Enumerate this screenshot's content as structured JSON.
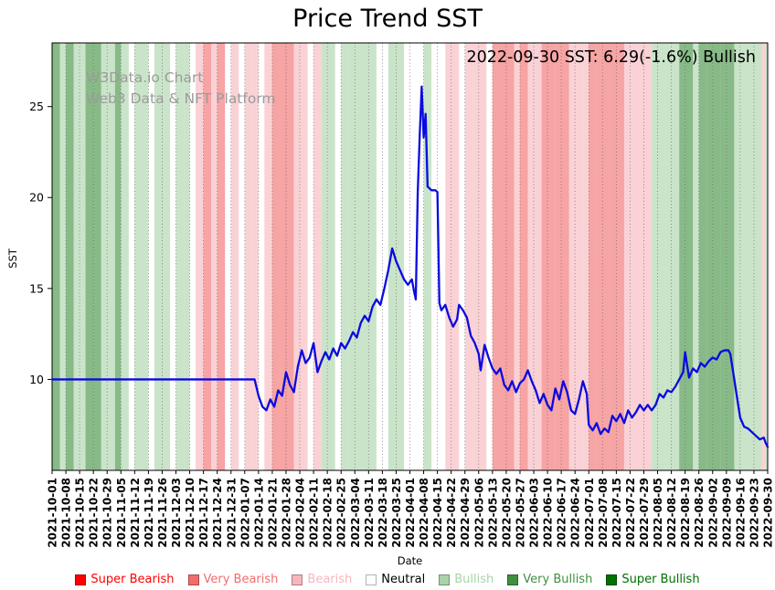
{
  "title": "Price Trend SST",
  "watermark": {
    "line1": "W3Data.io Chart",
    "line2": "Web3 Data & NFT Platform"
  },
  "annotation": "2022-09-30 SST: 6.29(-1.6%) Bullish",
  "axes": {
    "x_label": "Date",
    "y_label": "SST"
  },
  "palette": {
    "super_bearish": "#ff0000",
    "very_bearish": "#f26c6c",
    "bearish": "#f7b6bd",
    "neutral": "#ffffff",
    "bullish": "#a9d3a9",
    "very_bullish": "#3f8f3f",
    "super_bullish": "#007000"
  },
  "legend": [
    {
      "label": "Super Bearish",
      "key": "super_bearish",
      "color": "#ff0000"
    },
    {
      "label": "Very Bearish",
      "key": "very_bearish",
      "color": "#f26c6c"
    },
    {
      "label": "Bearish",
      "key": "bearish",
      "color": "#f7b6bd"
    },
    {
      "label": "Neutral",
      "key": "neutral",
      "color": "#ffffff",
      "text_color": "#000000"
    },
    {
      "label": "Bullish",
      "key": "bullish",
      "color": "#a9d3a9"
    },
    {
      "label": "Very Bullish",
      "key": "very_bullish",
      "color": "#3f8f3f"
    },
    {
      "label": "Super Bullish",
      "key": "super_bullish",
      "color": "#007000"
    }
  ],
  "chart_data": {
    "type": "line",
    "title": "Price Trend SST",
    "xlabel": "Date",
    "ylabel": "SST",
    "ylim": [
      5.0,
      28.5
    ],
    "yticks": [
      10,
      15,
      20,
      25
    ],
    "grid": "vertical-dotted",
    "legend_position": "bottom",
    "x_tick_labels": [
      "2021-10-01",
      "2021-10-08",
      "2021-10-15",
      "2021-10-22",
      "2021-10-29",
      "2021-11-05",
      "2021-11-12",
      "2021-11-19",
      "2021-11-26",
      "2021-12-03",
      "2021-12-10",
      "2021-12-17",
      "2021-12-24",
      "2021-12-31",
      "2022-01-07",
      "2022-01-14",
      "2022-01-21",
      "2022-01-28",
      "2022-02-04",
      "2022-02-11",
      "2022-02-18",
      "2022-02-25",
      "2022-03-04",
      "2022-03-11",
      "2022-03-18",
      "2022-03-25",
      "2022-04-01",
      "2022-04-08",
      "2022-04-15",
      "2022-04-22",
      "2022-04-29",
      "2022-05-06",
      "2022-05-13",
      "2022-05-20",
      "2022-05-27",
      "2022-06-03",
      "2022-06-10",
      "2022-06-17",
      "2022-06-24",
      "2022-07-01",
      "2022-07-08",
      "2022-07-15",
      "2022-07-22",
      "2022-07-29",
      "2022-08-05",
      "2022-08-12",
      "2022-08-19",
      "2022-08-26",
      "2022-09-02",
      "2022-09-09",
      "2022-09-16",
      "2022-09-23",
      "2022-09-30"
    ],
    "x_days_total": 364,
    "latest": {
      "date": "2022-09-30",
      "sst": 6.29,
      "change_pct": -1.6,
      "signal": "Bullish"
    },
    "series": [
      {
        "name": "SST",
        "color": "#0a0ae0",
        "points": [
          [
            0,
            10
          ],
          [
            14,
            10
          ],
          [
            28,
            10
          ],
          [
            42,
            10
          ],
          [
            56,
            10
          ],
          [
            70,
            10
          ],
          [
            84,
            10
          ],
          [
            98,
            10
          ],
          [
            103,
            10
          ],
          [
            105,
            9.1
          ],
          [
            107,
            8.5
          ],
          [
            109,
            8.3
          ],
          [
            111,
            8.9
          ],
          [
            113,
            8.5
          ],
          [
            115,
            9.4
          ],
          [
            117,
            9.1
          ],
          [
            119,
            10.4
          ],
          [
            121,
            9.7
          ],
          [
            123,
            9.3
          ],
          [
            125,
            10.7
          ],
          [
            127,
            11.6
          ],
          [
            129,
            10.9
          ],
          [
            131,
            11.2
          ],
          [
            133,
            12.0
          ],
          [
            135,
            10.4
          ],
          [
            137,
            11.0
          ],
          [
            139,
            11.5
          ],
          [
            141,
            11.1
          ],
          [
            143,
            11.7
          ],
          [
            145,
            11.3
          ],
          [
            147,
            12.0
          ],
          [
            149,
            11.7
          ],
          [
            151,
            12.1
          ],
          [
            153,
            12.6
          ],
          [
            155,
            12.3
          ],
          [
            157,
            13.1
          ],
          [
            159,
            13.5
          ],
          [
            161,
            13.2
          ],
          [
            163,
            14.0
          ],
          [
            165,
            14.4
          ],
          [
            167,
            14.1
          ],
          [
            169,
            15.0
          ],
          [
            171,
            16.0
          ],
          [
            173,
            17.2
          ],
          [
            175,
            16.5
          ],
          [
            177,
            16.0
          ],
          [
            179,
            15.5
          ],
          [
            181,
            15.2
          ],
          [
            183,
            15.5
          ],
          [
            184,
            14.9
          ],
          [
            185,
            14.4
          ],
          [
            186,
            20.3
          ],
          [
            187,
            23.4
          ],
          [
            188,
            26.1
          ],
          [
            189,
            23.3
          ],
          [
            190,
            24.6
          ],
          [
            191,
            20.6
          ],
          [
            193,
            20.4
          ],
          [
            195,
            20.4
          ],
          [
            196,
            20.3
          ],
          [
            197,
            14.2
          ],
          [
            198,
            13.8
          ],
          [
            200,
            14.1
          ],
          [
            202,
            13.4
          ],
          [
            204,
            12.9
          ],
          [
            206,
            13.3
          ],
          [
            207,
            14.1
          ],
          [
            209,
            13.8
          ],
          [
            211,
            13.4
          ],
          [
            213,
            12.4
          ],
          [
            215,
            12.0
          ],
          [
            217,
            11.4
          ],
          [
            218,
            10.5
          ],
          [
            220,
            11.9
          ],
          [
            222,
            11.2
          ],
          [
            224,
            10.6
          ],
          [
            226,
            10.3
          ],
          [
            228,
            10.6
          ],
          [
            230,
            9.7
          ],
          [
            232,
            9.4
          ],
          [
            234,
            9.9
          ],
          [
            236,
            9.3
          ],
          [
            238,
            9.8
          ],
          [
            240,
            10.0
          ],
          [
            242,
            10.5
          ],
          [
            244,
            9.9
          ],
          [
            246,
            9.4
          ],
          [
            248,
            8.7
          ],
          [
            250,
            9.2
          ],
          [
            252,
            8.6
          ],
          [
            254,
            8.3
          ],
          [
            256,
            9.5
          ],
          [
            258,
            8.9
          ],
          [
            260,
            9.9
          ],
          [
            262,
            9.3
          ],
          [
            264,
            8.3
          ],
          [
            266,
            8.1
          ],
          [
            268,
            8.9
          ],
          [
            270,
            9.9
          ],
          [
            272,
            9.2
          ],
          [
            273,
            7.5
          ],
          [
            275,
            7.2
          ],
          [
            277,
            7.6
          ],
          [
            279,
            7.0
          ],
          [
            281,
            7.3
          ],
          [
            283,
            7.1
          ],
          [
            285,
            8.0
          ],
          [
            287,
            7.7
          ],
          [
            289,
            8.1
          ],
          [
            291,
            7.6
          ],
          [
            293,
            8.3
          ],
          [
            295,
            7.9
          ],
          [
            297,
            8.2
          ],
          [
            299,
            8.6
          ],
          [
            301,
            8.3
          ],
          [
            303,
            8.6
          ],
          [
            305,
            8.3
          ],
          [
            307,
            8.6
          ],
          [
            309,
            9.2
          ],
          [
            311,
            9.0
          ],
          [
            313,
            9.4
          ],
          [
            315,
            9.3
          ],
          [
            317,
            9.6
          ],
          [
            319,
            10.0
          ],
          [
            321,
            10.4
          ],
          [
            322,
            11.5
          ],
          [
            324,
            10.1
          ],
          [
            326,
            10.6
          ],
          [
            328,
            10.4
          ],
          [
            330,
            10.9
          ],
          [
            332,
            10.7
          ],
          [
            334,
            11.0
          ],
          [
            336,
            11.2
          ],
          [
            338,
            11.1
          ],
          [
            340,
            11.5
          ],
          [
            342,
            11.6
          ],
          [
            344,
            11.6
          ],
          [
            345,
            11.4
          ],
          [
            347,
            10.0
          ],
          [
            349,
            8.6
          ],
          [
            350,
            7.9
          ],
          [
            352,
            7.4
          ],
          [
            354,
            7.3
          ],
          [
            356,
            7.1
          ],
          [
            358,
            6.9
          ],
          [
            360,
            6.7
          ],
          [
            362,
            6.8
          ],
          [
            363,
            6.5
          ],
          [
            364,
            6.29
          ]
        ]
      }
    ],
    "bands": [
      [
        0,
        4,
        "very_bullish"
      ],
      [
        4,
        3,
        "bullish"
      ],
      [
        7,
        4,
        "very_bullish"
      ],
      [
        11,
        3,
        "bullish"
      ],
      [
        14,
        3,
        "bullish"
      ],
      [
        17,
        4,
        "very_bullish"
      ],
      [
        21,
        4,
        "very_bullish"
      ],
      [
        25,
        3,
        "bullish"
      ],
      [
        28,
        4,
        "bullish"
      ],
      [
        32,
        3,
        "very_bullish"
      ],
      [
        35,
        4,
        "bullish"
      ],
      [
        39,
        3,
        "neutral"
      ],
      [
        42,
        4,
        "bullish"
      ],
      [
        46,
        3,
        "bullish"
      ],
      [
        49,
        3,
        "neutral"
      ],
      [
        52,
        4,
        "bullish"
      ],
      [
        56,
        4,
        "bullish"
      ],
      [
        60,
        3,
        "neutral"
      ],
      [
        63,
        4,
        "bullish"
      ],
      [
        67,
        3,
        "bullish"
      ],
      [
        70,
        3,
        "neutral"
      ],
      [
        73,
        4,
        "bearish"
      ],
      [
        77,
        4,
        "very_bearish"
      ],
      [
        81,
        3,
        "bearish"
      ],
      [
        84,
        4,
        "very_bearish"
      ],
      [
        88,
        3,
        "neutral"
      ],
      [
        91,
        4,
        "bearish"
      ],
      [
        95,
        3,
        "neutral"
      ],
      [
        98,
        4,
        "bearish"
      ],
      [
        102,
        3,
        "bearish"
      ],
      [
        105,
        3,
        "neutral"
      ],
      [
        108,
        4,
        "bearish"
      ],
      [
        112,
        4,
        "very_bearish"
      ],
      [
        116,
        3,
        "very_bearish"
      ],
      [
        119,
        4,
        "very_bearish"
      ],
      [
        123,
        3,
        "bearish"
      ],
      [
        126,
        4,
        "bearish"
      ],
      [
        130,
        3,
        "neutral"
      ],
      [
        133,
        4,
        "bearish"
      ],
      [
        137,
        3,
        "bullish"
      ],
      [
        140,
        4,
        "bullish"
      ],
      [
        144,
        3,
        "neutral"
      ],
      [
        147,
        4,
        "bullish"
      ],
      [
        151,
        3,
        "bullish"
      ],
      [
        154,
        4,
        "bullish"
      ],
      [
        158,
        3,
        "bullish"
      ],
      [
        161,
        4,
        "bullish"
      ],
      [
        165,
        3,
        "neutral"
      ],
      [
        168,
        3,
        "neutral"
      ],
      [
        171,
        4,
        "bullish"
      ],
      [
        175,
        4,
        "bullish"
      ],
      [
        179,
        3,
        "neutral"
      ],
      [
        182,
        4,
        "neutral"
      ],
      [
        186,
        3,
        "neutral"
      ],
      [
        189,
        4,
        "bullish"
      ],
      [
        193,
        3,
        "neutral"
      ],
      [
        196,
        4,
        "neutral"
      ],
      [
        200,
        3,
        "bearish"
      ],
      [
        203,
        4,
        "bearish"
      ],
      [
        207,
        3,
        "neutral"
      ],
      [
        210,
        4,
        "bearish"
      ],
      [
        214,
        3,
        "bearish"
      ],
      [
        217,
        4,
        "bearish"
      ],
      [
        221,
        3,
        "neutral"
      ],
      [
        224,
        4,
        "very_bearish"
      ],
      [
        228,
        3,
        "very_bearish"
      ],
      [
        231,
        4,
        "very_bearish"
      ],
      [
        235,
        3,
        "bearish"
      ],
      [
        238,
        4,
        "very_bearish"
      ],
      [
        242,
        3,
        "bearish"
      ],
      [
        245,
        4,
        "bearish"
      ],
      [
        249,
        3,
        "very_bearish"
      ],
      [
        252,
        4,
        "very_bearish"
      ],
      [
        256,
        3,
        "very_bearish"
      ],
      [
        259,
        4,
        "very_bearish"
      ],
      [
        263,
        3,
        "bearish"
      ],
      [
        266,
        4,
        "bearish"
      ],
      [
        270,
        3,
        "bearish"
      ],
      [
        273,
        4,
        "very_bearish"
      ],
      [
        277,
        3,
        "very_bearish"
      ],
      [
        280,
        4,
        "very_bearish"
      ],
      [
        284,
        3,
        "very_bearish"
      ],
      [
        287,
        4,
        "very_bearish"
      ],
      [
        291,
        3,
        "bearish"
      ],
      [
        294,
        4,
        "bearish"
      ],
      [
        298,
        3,
        "bearish"
      ],
      [
        301,
        4,
        "bearish"
      ],
      [
        305,
        3,
        "bullish"
      ],
      [
        308,
        4,
        "bullish"
      ],
      [
        312,
        3,
        "bullish"
      ],
      [
        315,
        4,
        "bullish"
      ],
      [
        319,
        3,
        "very_bullish"
      ],
      [
        322,
        4,
        "very_bullish"
      ],
      [
        326,
        3,
        "bullish"
      ],
      [
        329,
        4,
        "very_bullish"
      ],
      [
        333,
        3,
        "very_bullish"
      ],
      [
        336,
        4,
        "very_bullish"
      ],
      [
        340,
        3,
        "very_bullish"
      ],
      [
        343,
        4,
        "very_bullish"
      ],
      [
        347,
        3,
        "bullish"
      ],
      [
        350,
        4,
        "bullish"
      ],
      [
        354,
        3,
        "bullish"
      ],
      [
        357,
        4,
        "bullish"
      ],
      [
        361,
        2,
        "bearish"
      ],
      [
        363,
        2,
        "bullish"
      ]
    ]
  }
}
